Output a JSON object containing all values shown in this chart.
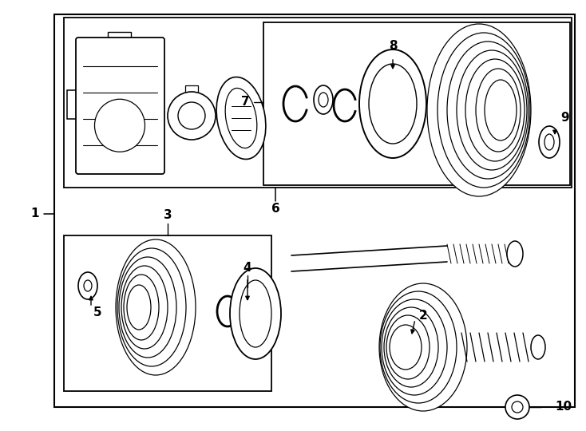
{
  "bg_color": "#ffffff",
  "line_color": "#000000",
  "figsize": [
    7.34,
    5.4
  ],
  "dpi": 100
}
